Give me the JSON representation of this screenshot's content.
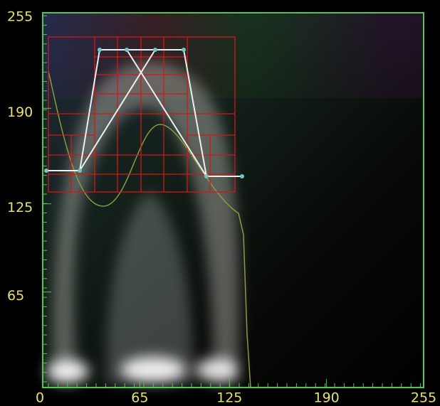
{
  "axes": {
    "xticks": [
      0,
      65,
      125,
      190,
      255
    ],
    "yticks": [
      65,
      125,
      190,
      255
    ],
    "range": [
      0,
      255
    ]
  }
}
